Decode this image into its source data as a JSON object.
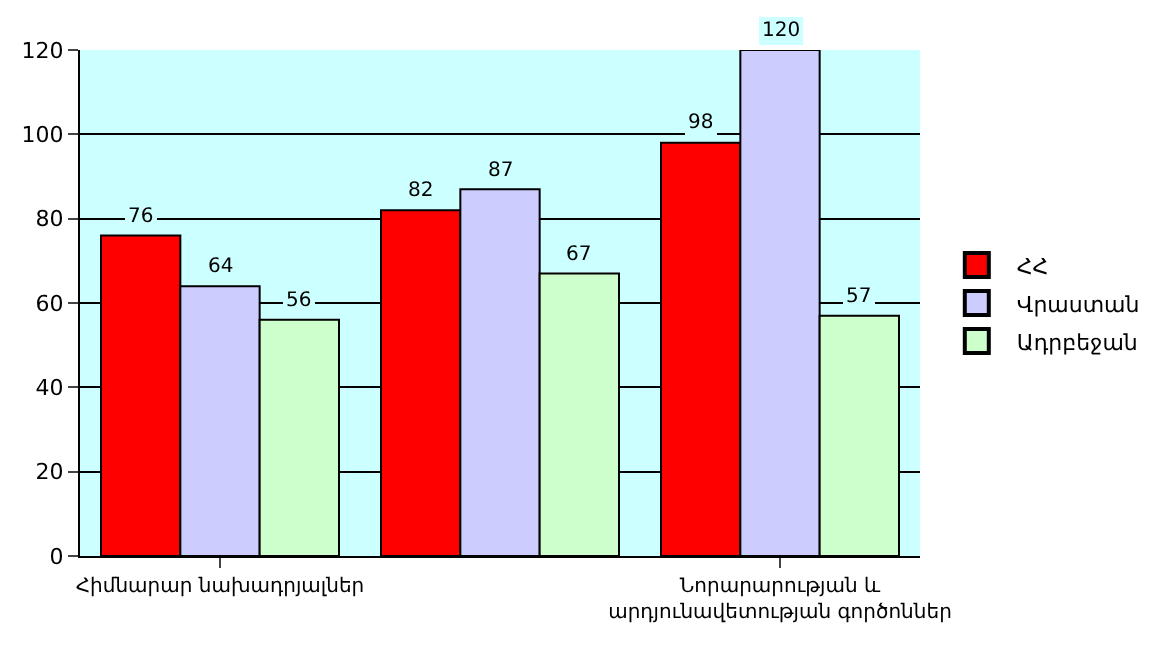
{
  "chart_data": {
    "type": "bar",
    "categories": [
      "Հիմնարար նախադրյալներ",
      null,
      "Նորարարության և\nարդյունավետության գործոններ"
    ],
    "series": [
      {
        "name": "ՀՀ",
        "color": "#ff0000",
        "values": [
          76,
          82,
          98
        ]
      },
      {
        "name": "Վրաստան",
        "color": "#ccccff",
        "values": [
          64,
          87,
          120
        ]
      },
      {
        "name": "Ադրբեջան",
        "color": "#ccffcc",
        "values": [
          56,
          67,
          57
        ]
      }
    ],
    "ylim": [
      0,
      120
    ],
    "yticks": [
      0,
      20,
      40,
      60,
      80,
      100,
      120
    ],
    "grid": "y",
    "legend": "right",
    "data_labels": true
  }
}
